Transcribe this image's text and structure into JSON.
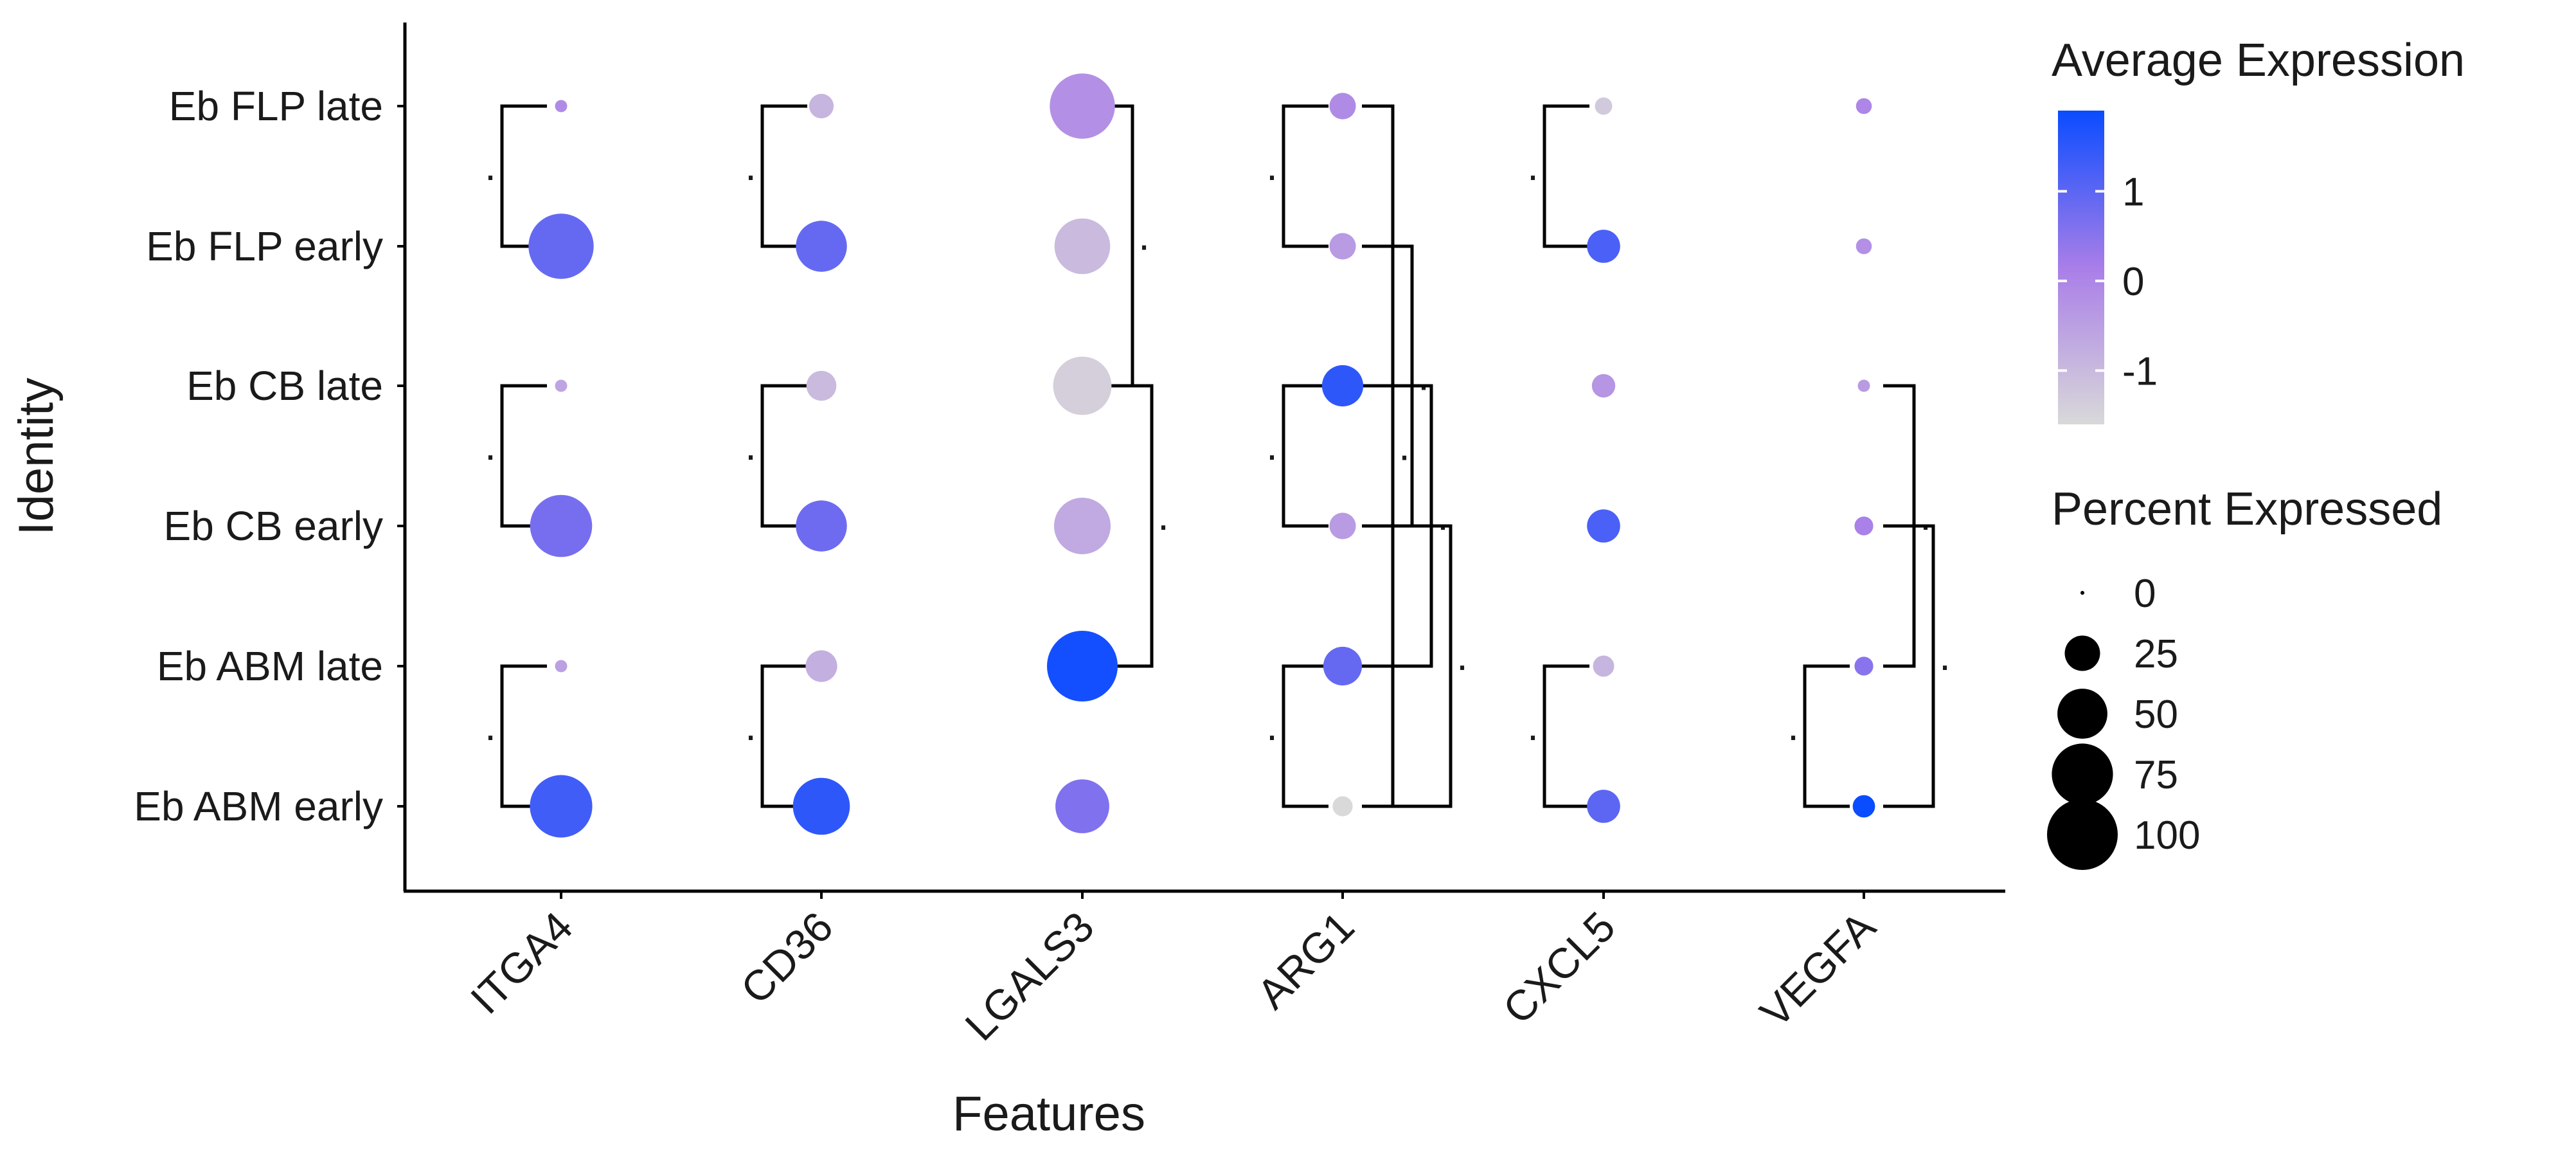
{
  "chart_data": {
    "type": "dot",
    "title": "",
    "xlabel": "Features",
    "ylabel": "Identity",
    "features": [
      "ITGA4",
      "CD36",
      "LGALS3",
      "ARG1",
      "CXCL5",
      "VEGFA"
    ],
    "identities": [
      "Eb FLP late",
      "Eb FLP early",
      "Eb CB late",
      "Eb CB early",
      "Eb ABM late",
      "Eb ABM early"
    ],
    "percent_expressed": [
      [
        3,
        12,
        85,
        14,
        6,
        5
      ],
      [
        85,
        52,
        62,
        14,
        22,
        5
      ],
      [
        3,
        18,
        68,
        34,
        11,
        3
      ],
      [
        77,
        52,
        64,
        14,
        22,
        7
      ],
      [
        3,
        20,
        100,
        30,
        9,
        7
      ],
      [
        78,
        65,
        58,
        8,
        22,
        10
      ]
    ],
    "average_expression": [
      [
        -0.1,
        -0.9,
        -0.2,
        -0.1,
        -1.3,
        0.0
      ],
      [
        0.9,
        0.9,
        -1.0,
        -0.4,
        1.2,
        -0.2
      ],
      [
        -0.6,
        -1.0,
        -1.4,
        1.5,
        -0.3,
        -0.4
      ],
      [
        0.7,
        0.8,
        -0.7,
        -0.4,
        1.2,
        0.1
      ],
      [
        -0.5,
        -0.8,
        1.8,
        0.9,
        -0.9,
        0.5
      ],
      [
        1.3,
        1.5,
        0.6,
        -1.6,
        1.0,
        1.9
      ]
    ],
    "color_legend": {
      "title": "Average Expression",
      "range": [
        -1.6,
        1.9
      ],
      "ticks": [
        1,
        0,
        -1
      ],
      "tick_labels": [
        "1",
        "0",
        "-1"
      ],
      "colors": {
        "low": "#d9d9d9",
        "mid": "#a97ee8",
        "high": "#0a4cff"
      }
    },
    "size_legend": {
      "title": "Percent Expressed",
      "values": [
        0,
        25,
        50,
        75,
        100
      ],
      "labels": [
        "0",
        "25",
        "50",
        "75",
        "100"
      ]
    },
    "significance_brackets": [
      {
        "feature": "ITGA4",
        "from": "Eb FLP late",
        "to": "Eb FLP early",
        "side": "left",
        "label": "."
      },
      {
        "feature": "ITGA4",
        "from": "Eb CB late",
        "to": "Eb CB early",
        "side": "left",
        "label": "."
      },
      {
        "feature": "ITGA4",
        "from": "Eb ABM late",
        "to": "Eb ABM early",
        "side": "left",
        "label": "."
      },
      {
        "feature": "CD36",
        "from": "Eb FLP late",
        "to": "Eb FLP early",
        "side": "left",
        "label": "."
      },
      {
        "feature": "CD36",
        "from": "Eb CB late",
        "to": "Eb CB early",
        "side": "left",
        "label": "."
      },
      {
        "feature": "CD36",
        "from": "Eb ABM late",
        "to": "Eb ABM early",
        "side": "left",
        "label": "."
      },
      {
        "feature": "LGALS3",
        "from": "Eb FLP late",
        "to": "Eb CB late",
        "side": "right",
        "label": "."
      },
      {
        "feature": "LGALS3",
        "from": "Eb CB late",
        "to": "Eb ABM late",
        "side": "right",
        "label": "."
      },
      {
        "feature": "ARG1",
        "from": "Eb FLP late",
        "to": "Eb FLP early",
        "side": "left",
        "label": "."
      },
      {
        "feature": "ARG1",
        "from": "Eb CB late",
        "to": "Eb CB early",
        "side": "left",
        "label": "."
      },
      {
        "feature": "ARG1",
        "from": "Eb ABM late",
        "to": "Eb ABM early",
        "side": "left",
        "label": "."
      },
      {
        "feature": "ARG1",
        "from": "Eb FLP late",
        "to": "Eb ABM early",
        "side": "right",
        "label": "."
      },
      {
        "feature": "ARG1",
        "from": "Eb FLP early",
        "to": "Eb CB early",
        "side": "right",
        "label": "."
      },
      {
        "feature": "ARG1",
        "from": "Eb CB late",
        "to": "Eb ABM late",
        "side": "right",
        "label": "."
      },
      {
        "feature": "ARG1",
        "from": "Eb CB early",
        "to": "Eb ABM early",
        "side": "right",
        "label": "."
      },
      {
        "feature": "CXCL5",
        "from": "Eb FLP late",
        "to": "Eb FLP early",
        "side": "left",
        "label": "."
      },
      {
        "feature": "CXCL5",
        "from": "Eb ABM late",
        "to": "Eb ABM early",
        "side": "left",
        "label": "."
      },
      {
        "feature": "VEGFA",
        "from": "Eb ABM late",
        "to": "Eb ABM early",
        "side": "left",
        "label": "."
      },
      {
        "feature": "VEGFA",
        "from": "Eb CB late",
        "to": "Eb ABM late",
        "side": "right",
        "label": "."
      },
      {
        "feature": "VEGFA",
        "from": "Eb CB early",
        "to": "Eb ABM early",
        "side": "right",
        "label": "."
      }
    ]
  }
}
